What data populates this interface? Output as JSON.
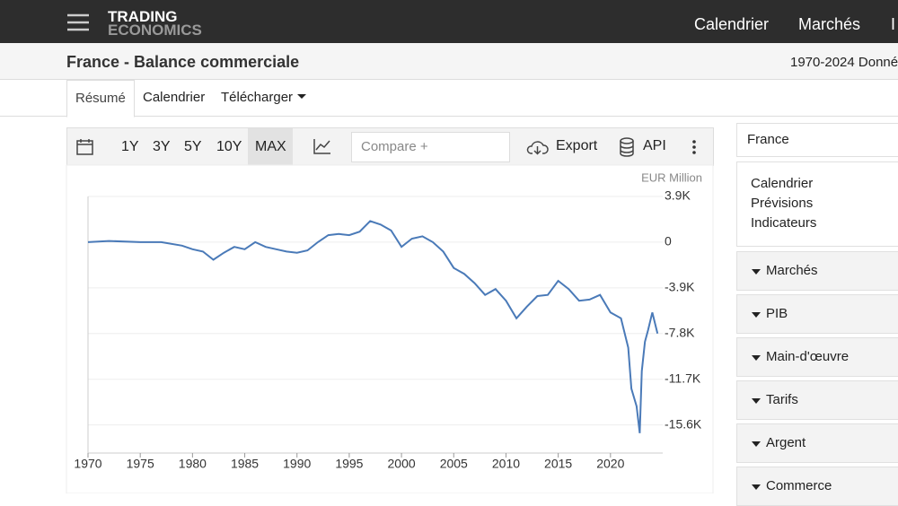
{
  "header": {
    "logo_line1": "TRADING",
    "logo_line2": "ECONOMICS",
    "nav": [
      "Calendrier",
      "Marchés",
      "I"
    ]
  },
  "page_title": "France - Balance commerciale",
  "date_range": "1970-2024 Donné",
  "tabs": [
    "Résumé",
    "Calendrier",
    "Télécharger"
  ],
  "toolbar": {
    "ranges": [
      "1Y",
      "3Y",
      "5Y",
      "10Y",
      "MAX"
    ],
    "compare": "Compare +",
    "export": "Export",
    "api": "API"
  },
  "sidebar": {
    "country": "France",
    "links": [
      "Calendrier",
      "Prévisions",
      "Indicateurs"
    ],
    "sections": [
      "Marchés",
      "PIB",
      "Main-d'œuvre",
      "Tarifs",
      "Argent",
      "Commerce"
    ]
  },
  "chart_data": {
    "type": "line",
    "y_unit": "EUR Million",
    "color": "#4a7ab8",
    "grid": true,
    "x": [
      1970,
      1972,
      1975,
      1977,
      1979,
      1980,
      1981,
      1982,
      1983,
      1984,
      1985,
      1986,
      1987,
      1988,
      1989,
      1990,
      1991,
      1992,
      1993,
      1994,
      1995,
      1996,
      1997,
      1998,
      1999,
      2000,
      2001,
      2002,
      2003,
      2004,
      2005,
      2006,
      2007,
      2008,
      2009,
      2010,
      2011,
      2012,
      2013,
      2014,
      2015,
      2016,
      2017,
      2018,
      2019,
      2020,
      2021,
      2021.7,
      2022,
      2022.5,
      2022.8,
      2023,
      2023.3,
      2023.6,
      2024,
      2024.5
    ],
    "values": [
      0,
      100,
      0,
      0,
      -300,
      -600,
      -800,
      -1500,
      -900,
      -400,
      -600,
      0,
      -400,
      -600,
      -800,
      -900,
      -700,
      0,
      600,
      700,
      600,
      900,
      1800,
      1500,
      1000,
      -400,
      300,
      500,
      0,
      -800,
      -2200,
      -2700,
      -3500,
      -4500,
      -4000,
      -5000,
      -6500,
      -5500,
      -4600,
      -4500,
      -3300,
      -4000,
      -5000,
      -4900,
      -4500,
      -6000,
      -6500,
      -9000,
      -12500,
      -14000,
      -16300,
      -11000,
      -8500,
      -7500,
      -6000,
      -7800
    ],
    "xlim": [
      1970,
      2025
    ],
    "xticks": [
      1970,
      1975,
      1980,
      1985,
      1990,
      1995,
      2000,
      2005,
      2010,
      2015,
      2020
    ],
    "ylim": [
      -18000,
      3900
    ],
    "yticks": [
      {
        "value": 3900,
        "label": "3.9K"
      },
      0,
      {
        "value": -3900,
        "label": "-3.9K"
      },
      {
        "value": -7800,
        "label": "-7.8K"
      },
      {
        "value": -11700,
        "label": "-11.7K"
      },
      {
        "value": -15600,
        "label": "-15.6K"
      }
    ]
  }
}
